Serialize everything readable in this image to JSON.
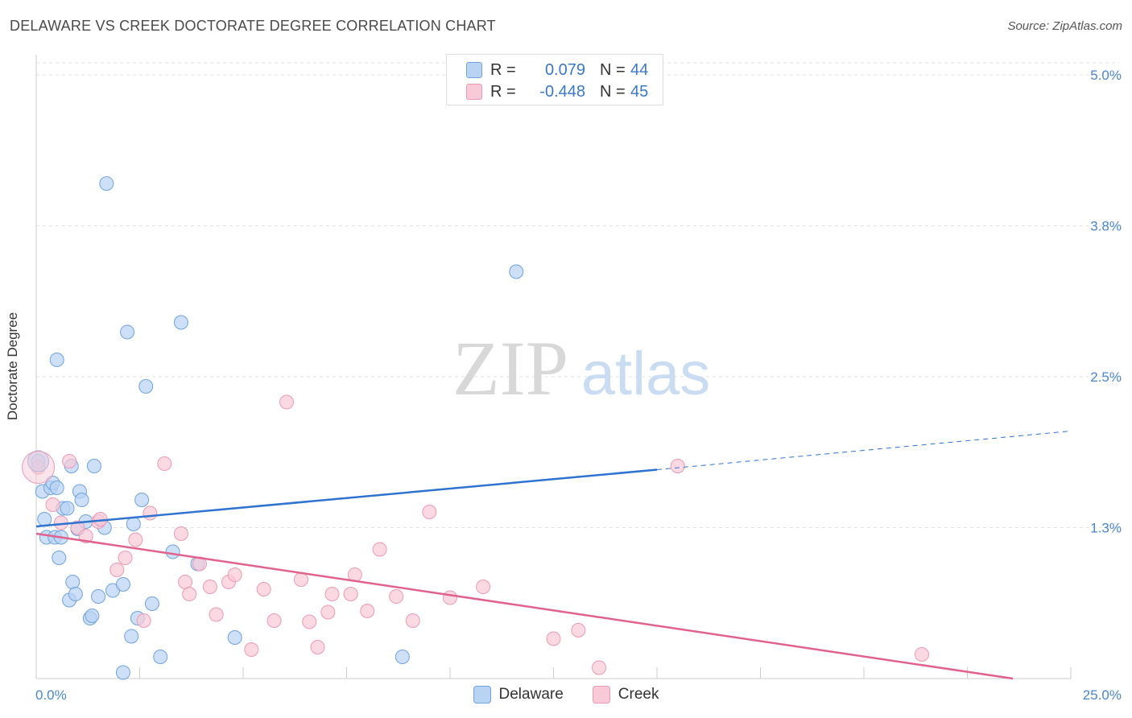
{
  "title": "DELAWARE VS CREEK DOCTORATE DEGREE CORRELATION CHART",
  "source": "Source: ZipAtlas.com",
  "watermark": {
    "zip": "ZIP",
    "atlas": "atlas"
  },
  "chart_data": {
    "type": "scatter",
    "title": "DELAWARE VS CREEK DOCTORATE DEGREE CORRELATION CHART",
    "xlabel": "",
    "ylabel": "Doctorate Degree",
    "xlim": [
      0,
      25
    ],
    "ylim": [
      0,
      5.1
    ],
    "x_tick_labels": [
      "0.0%",
      "25.0%"
    ],
    "y_ticks": [
      1.25,
      2.5,
      3.75,
      5.0
    ],
    "y_tick_labels": [
      "1.3%",
      "2.5%",
      "3.8%",
      "5.0%"
    ],
    "grid": true,
    "legend_position": "top-center",
    "series": [
      {
        "name": "Delaware",
        "color": "#6fa3e0",
        "fill": "#b9d3f3",
        "line_color": "#2f73d1",
        "R": "0.079",
        "N": "44",
        "trend": {
          "x0": 0,
          "y0": 1.26,
          "x1": 15.0,
          "y1": 1.73,
          "dashed_to_x": 25.0,
          "dashed_to_y": 2.05
        },
        "points": [
          [
            0.05,
            1.8
          ],
          [
            0.15,
            1.55
          ],
          [
            0.2,
            1.32
          ],
          [
            0.25,
            1.17
          ],
          [
            0.35,
            1.58
          ],
          [
            0.4,
            1.62
          ],
          [
            0.45,
            1.17
          ],
          [
            0.5,
            1.58
          ],
          [
            0.55,
            1.0
          ],
          [
            0.6,
            1.17
          ],
          [
            0.65,
            1.41
          ],
          [
            0.75,
            1.41
          ],
          [
            0.8,
            0.65
          ],
          [
            0.85,
            1.76
          ],
          [
            0.88,
            0.8
          ],
          [
            0.95,
            0.7
          ],
          [
            1.0,
            1.24
          ],
          [
            1.05,
            1.55
          ],
          [
            1.1,
            1.48
          ],
          [
            1.2,
            1.3
          ],
          [
            1.3,
            0.5
          ],
          [
            1.35,
            0.52
          ],
          [
            1.4,
            1.76
          ],
          [
            1.5,
            0.68
          ],
          [
            1.65,
            1.25
          ],
          [
            1.7,
            4.1
          ],
          [
            1.85,
            0.73
          ],
          [
            2.1,
            0.05
          ],
          [
            2.2,
            2.87
          ],
          [
            2.3,
            0.35
          ],
          [
            2.35,
            1.28
          ],
          [
            2.45,
            0.5
          ],
          [
            2.55,
            1.48
          ],
          [
            2.65,
            2.42
          ],
          [
            2.8,
            0.62
          ],
          [
            3.0,
            0.18
          ],
          [
            3.3,
            1.05
          ],
          [
            3.5,
            2.95
          ],
          [
            3.9,
            0.95
          ],
          [
            4.8,
            0.34
          ],
          [
            8.85,
            0.18
          ],
          [
            11.6,
            3.37
          ],
          [
            2.1,
            0.78
          ],
          [
            0.5,
            2.64
          ]
        ]
      },
      {
        "name": "Creek",
        "color": "#ec9ab3",
        "fill": "#f8c9d7",
        "line_color": "#e2628e",
        "R": "-0.448",
        "N": "45",
        "trend": {
          "x0": 0,
          "y0": 1.2,
          "x1": 23.6,
          "y1": 0.0
        },
        "points": [
          [
            0.05,
            1.75
          ],
          [
            0.4,
            1.44
          ],
          [
            0.6,
            1.29
          ],
          [
            0.8,
            1.8
          ],
          [
            1.0,
            1.25
          ],
          [
            1.2,
            1.18
          ],
          [
            1.5,
            1.3
          ],
          [
            1.55,
            1.32
          ],
          [
            1.95,
            0.9
          ],
          [
            2.15,
            1.0
          ],
          [
            2.4,
            1.15
          ],
          [
            2.6,
            0.48
          ],
          [
            2.75,
            1.37
          ],
          [
            3.1,
            1.78
          ],
          [
            3.5,
            1.2
          ],
          [
            3.6,
            0.8
          ],
          [
            3.7,
            0.7
          ],
          [
            3.95,
            0.95
          ],
          [
            4.2,
            0.76
          ],
          [
            4.35,
            0.53
          ],
          [
            4.65,
            0.8
          ],
          [
            4.8,
            0.86
          ],
          [
            5.2,
            0.24
          ],
          [
            5.5,
            0.74
          ],
          [
            5.75,
            0.48
          ],
          [
            6.05,
            2.29
          ],
          [
            6.4,
            0.82
          ],
          [
            6.6,
            0.47
          ],
          [
            6.8,
            0.26
          ],
          [
            7.05,
            0.55
          ],
          [
            7.15,
            0.7
          ],
          [
            7.6,
            0.7
          ],
          [
            7.7,
            0.86
          ],
          [
            8.0,
            0.56
          ],
          [
            8.3,
            1.07
          ],
          [
            8.7,
            0.68
          ],
          [
            9.1,
            0.48
          ],
          [
            9.5,
            1.38
          ],
          [
            10.0,
            0.67
          ],
          [
            10.8,
            0.76
          ],
          [
            12.5,
            0.33
          ],
          [
            13.1,
            0.4
          ],
          [
            13.6,
            0.09
          ],
          [
            15.5,
            1.76
          ],
          [
            21.4,
            0.2
          ]
        ]
      }
    ]
  }
}
